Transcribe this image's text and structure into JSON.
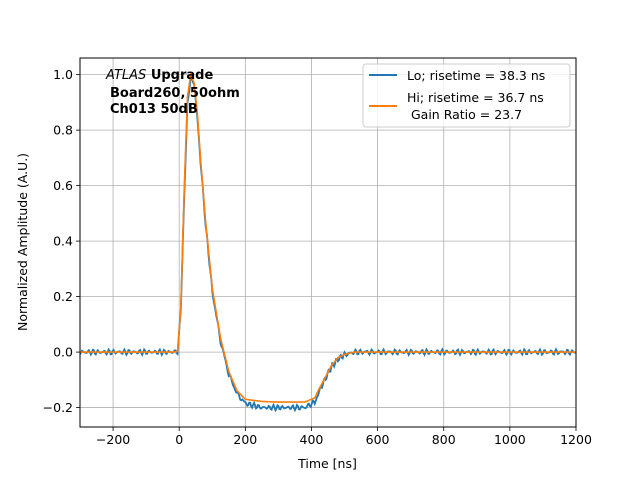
{
  "chart_data": {
    "type": "line",
    "xlabel": "Time [ns]",
    "ylabel": "Normalized Amplitude (A.U.)",
    "xlim": [
      -300,
      1200
    ],
    "ylim": [
      -0.27,
      1.06
    ],
    "x_ticks": [
      -200,
      0,
      200,
      400,
      600,
      800,
      1000,
      1200
    ],
    "x_tick_labels": [
      "−200",
      "0",
      "200",
      "400",
      "600",
      "800",
      "1000",
      "1200"
    ],
    "y_ticks": [
      -0.2,
      0.0,
      0.2,
      0.4,
      0.6,
      0.8,
      1.0
    ],
    "y_tick_labels": [
      "−0.2",
      "0.0",
      "0.2",
      "0.4",
      "0.6",
      "0.8",
      "1.0"
    ],
    "grid": true,
    "legend_position": "top-right",
    "annotation": {
      "italic": "ATLAS",
      "bold": "Upgrade",
      "line2": "Board260, 50ohm",
      "line3": "Ch013 50dB"
    },
    "series": [
      {
        "name": "Lo; risetime = 38.3 ns",
        "color": "#1f77b4",
        "x": [
          -300,
          -100,
          -20,
          -5,
          5,
          15,
          25,
          35,
          45,
          55,
          65,
          80,
          100,
          125,
          150,
          175,
          200,
          250,
          300,
          350,
          380,
          410,
          420,
          440,
          460,
          480,
          500,
          530,
          560,
          600,
          700,
          900,
          1100,
          1200
        ],
        "y": [
          0.0,
          0.0,
          0.0,
          0.002,
          0.15,
          0.55,
          0.9,
          0.99,
          0.96,
          0.85,
          0.68,
          0.46,
          0.22,
          0.04,
          -0.08,
          -0.15,
          -0.185,
          -0.2,
          -0.2,
          -0.2,
          -0.2,
          -0.18,
          -0.15,
          -0.1,
          -0.055,
          -0.025,
          -0.01,
          0.0,
          0.0,
          0.0,
          0.0,
          0.0,
          0.0,
          0.0
        ]
      },
      {
        "name": "Hi; risetime = 36.7 ns",
        "name_line2": " Gain Ratio = 23.7",
        "color": "#ff7f0e",
        "x": [
          -300,
          -100,
          -20,
          -5,
          5,
          15,
          25,
          35,
          45,
          55,
          65,
          80,
          100,
          125,
          150,
          175,
          200,
          250,
          300,
          350,
          380,
          410,
          420,
          440,
          460,
          480,
          500,
          530,
          560,
          600,
          700,
          900,
          1100,
          1200
        ],
        "y": [
          0.0,
          0.0,
          0.0,
          0.002,
          0.16,
          0.58,
          0.92,
          1.0,
          0.97,
          0.86,
          0.69,
          0.47,
          0.23,
          0.05,
          -0.07,
          -0.14,
          -0.17,
          -0.178,
          -0.18,
          -0.18,
          -0.18,
          -0.165,
          -0.14,
          -0.095,
          -0.05,
          -0.02,
          -0.008,
          0.0,
          0.0,
          0.0,
          0.0,
          0.0,
          0.0,
          0.0
        ]
      }
    ]
  }
}
